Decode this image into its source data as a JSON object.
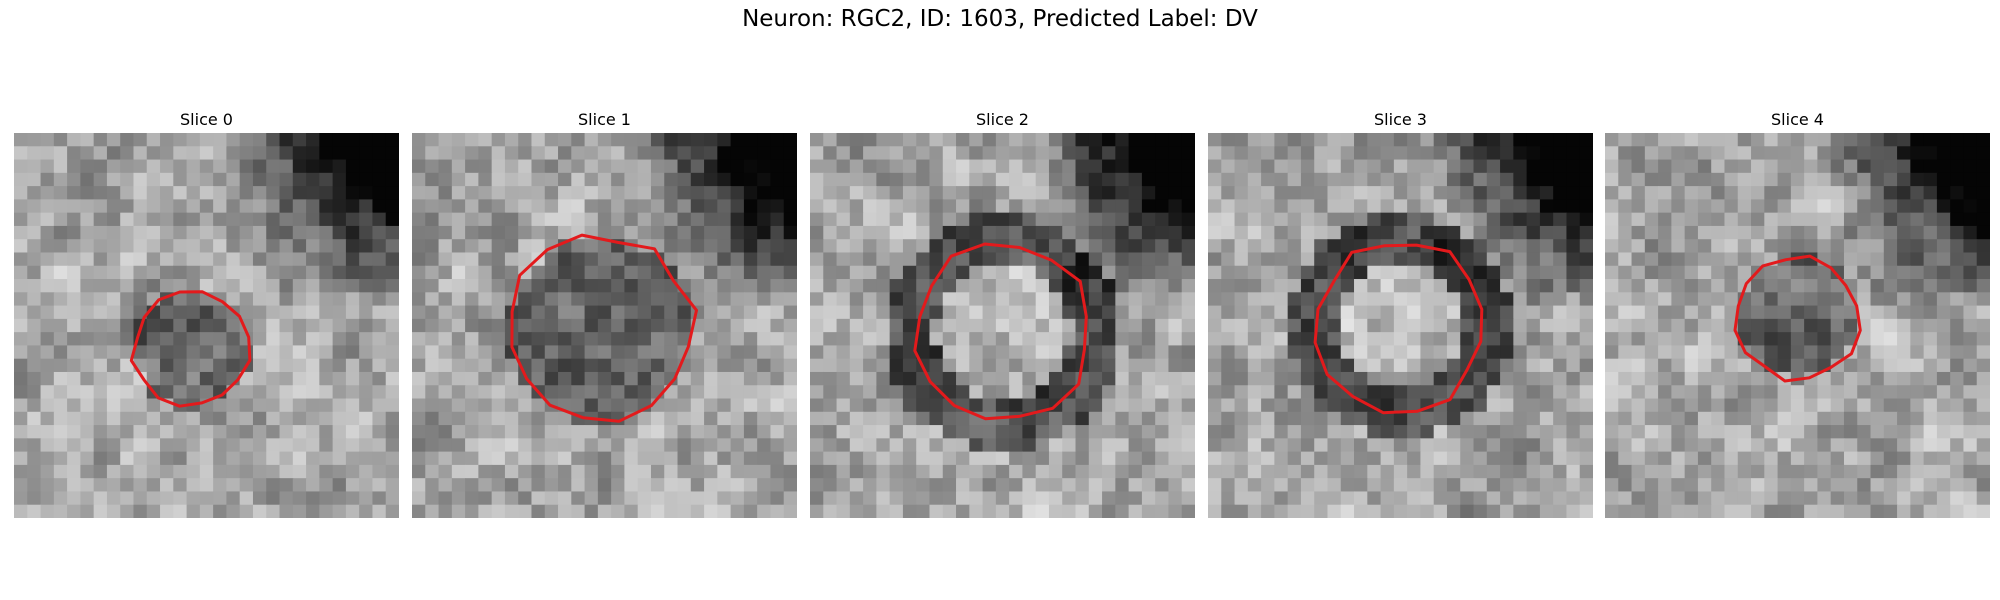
{
  "figure": {
    "title": "Neuron: RGC2, ID: 1603, Predicted Label: DV"
  },
  "panels": [
    {
      "title": "Slice 0",
      "seed": 11,
      "contour": "roi-outline-red",
      "roi_radius": 0.15,
      "roi_center": [
        0.46,
        0.56
      ],
      "ring": false
    },
    {
      "title": "Slice 1",
      "seed": 23,
      "contour": "roi-outline-red",
      "roi_radius": 0.24,
      "roi_center": [
        0.49,
        0.51
      ],
      "ring": false
    },
    {
      "title": "Slice 2",
      "seed": 37,
      "contour": "roi-outline-red",
      "roi_radius": 0.23,
      "roi_center": [
        0.5,
        0.52
      ],
      "ring": true
    },
    {
      "title": "Slice 3",
      "seed": 53,
      "contour": "roi-outline-red",
      "roi_radius": 0.22,
      "roi_center": [
        0.5,
        0.5
      ],
      "ring": true
    },
    {
      "title": "Slice 4",
      "seed": 71,
      "contour": "roi-outline-red",
      "roi_radius": 0.16,
      "roi_center": [
        0.5,
        0.48
      ],
      "ring": false
    }
  ],
  "colors": {
    "contour": "#e31a1c",
    "colormap": "gray"
  }
}
